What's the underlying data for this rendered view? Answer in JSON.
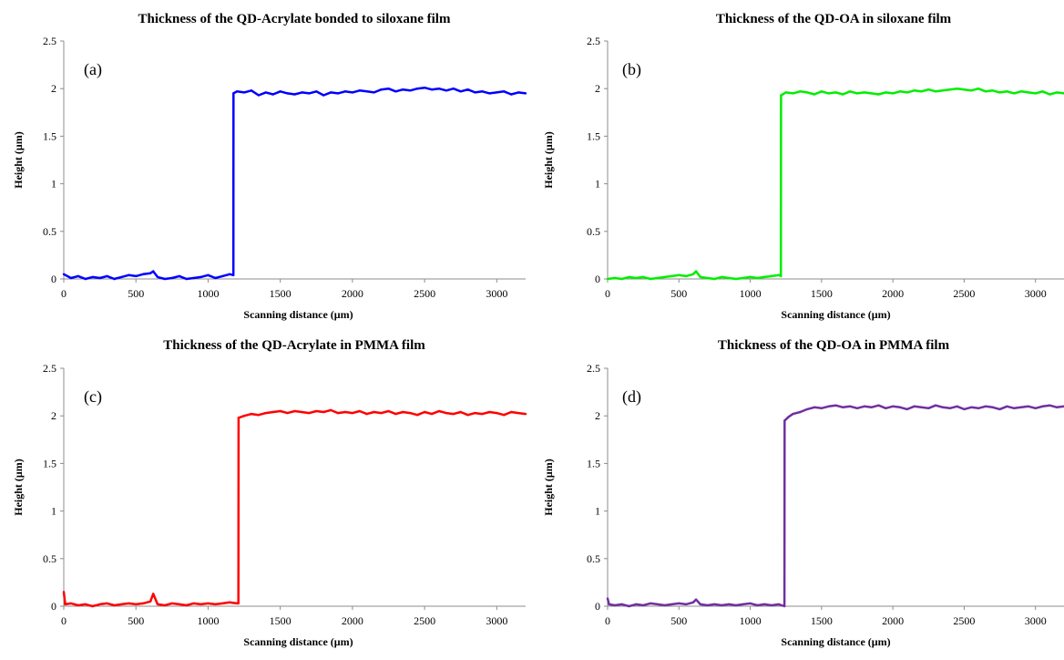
{
  "panels": [
    {
      "panel_label": "(a)",
      "chart_data": {
        "type": "line",
        "title": "Thickness of the QD-Acrylate bonded to siloxane film",
        "xlabel": "Scanning distance (μm)",
        "ylabel": "Height (μm)",
        "xlim": [
          0,
          3200
        ],
        "ylim": [
          0,
          2.5
        ],
        "xticks": [
          0,
          500,
          1000,
          1500,
          2000,
          2500,
          3000
        ],
        "yticks": [
          0,
          0.5,
          1,
          1.5,
          2,
          2.5
        ],
        "ytick_labels": [
          "0",
          "0.5",
          "1",
          "1.5",
          "2",
          "2.5"
        ],
        "color": "#0000ff",
        "series": [
          {
            "x": [
              0,
              50,
              100,
              150,
              200,
              250,
              300,
              350,
              400,
              450,
              500,
              550,
              600,
              620,
              650,
              700,
              750,
              800,
              850,
              900,
              950,
              1000,
              1050,
              1100,
              1150,
              1175,
              1176,
              1200,
              1250,
              1300,
              1350,
              1400,
              1450,
              1500,
              1550,
              1600,
              1650,
              1700,
              1750,
              1800,
              1850,
              1900,
              1950,
              2000,
              2050,
              2100,
              2150,
              2200,
              2250,
              2300,
              2350,
              2400,
              2450,
              2500,
              2550,
              2600,
              2650,
              2700,
              2750,
              2800,
              2850,
              2900,
              2950,
              3000,
              3050,
              3100,
              3150,
              3200
            ],
            "y": [
              0.05,
              0.01,
              0.03,
              0.0,
              0.02,
              0.01,
              0.03,
              0.0,
              0.02,
              0.04,
              0.03,
              0.05,
              0.06,
              0.08,
              0.02,
              0.0,
              0.01,
              0.03,
              0.0,
              0.01,
              0.02,
              0.04,
              0.01,
              0.03,
              0.05,
              0.04,
              1.95,
              1.97,
              1.96,
              1.98,
              1.93,
              1.96,
              1.94,
              1.97,
              1.95,
              1.94,
              1.96,
              1.95,
              1.97,
              1.93,
              1.96,
              1.95,
              1.97,
              1.96,
              1.98,
              1.97,
              1.96,
              1.99,
              2.0,
              1.97,
              1.99,
              1.98,
              2.0,
              2.01,
              1.99,
              2.0,
              1.98,
              2.0,
              1.97,
              1.99,
              1.96,
              1.97,
              1.95,
              1.96,
              1.97,
              1.94,
              1.96,
              1.95
            ]
          }
        ]
      }
    },
    {
      "panel_label": "(b)",
      "chart_data": {
        "type": "line",
        "title": "Thickness of the QD-OA in siloxane film",
        "xlabel": "Scanning distance (μm)",
        "ylabel": "Height (μm)",
        "xlim": [
          0,
          3200
        ],
        "ylim": [
          0,
          2.5
        ],
        "xticks": [
          0,
          500,
          1000,
          1500,
          2000,
          2500,
          3000
        ],
        "yticks": [
          0,
          0.5,
          1,
          1.5,
          2,
          2.5
        ],
        "ytick_labels": [
          "0",
          "0.5",
          "1",
          "1.5",
          "2",
          "2.5"
        ],
        "color": "#00ee00",
        "series": [
          {
            "x": [
              0,
              50,
              100,
              150,
              200,
              250,
              300,
              350,
              400,
              450,
              500,
              550,
              600,
              620,
              650,
              700,
              750,
              800,
              850,
              900,
              950,
              1000,
              1050,
              1100,
              1150,
              1200,
              1215,
              1216,
              1250,
              1300,
              1350,
              1400,
              1450,
              1500,
              1550,
              1600,
              1650,
              1700,
              1750,
              1800,
              1850,
              1900,
              1950,
              2000,
              2050,
              2100,
              2150,
              2200,
              2250,
              2300,
              2350,
              2400,
              2450,
              2500,
              2550,
              2600,
              2650,
              2700,
              2750,
              2800,
              2850,
              2900,
              2950,
              3000,
              3050,
              3100,
              3150,
              3200
            ],
            "y": [
              0.0,
              0.01,
              0.0,
              0.02,
              0.01,
              0.02,
              0.0,
              0.01,
              0.02,
              0.03,
              0.04,
              0.03,
              0.05,
              0.08,
              0.02,
              0.01,
              0.0,
              0.02,
              0.01,
              0.0,
              0.01,
              0.02,
              0.01,
              0.02,
              0.03,
              0.04,
              0.03,
              1.93,
              1.96,
              1.95,
              1.97,
              1.96,
              1.94,
              1.97,
              1.95,
              1.96,
              1.94,
              1.97,
              1.95,
              1.96,
              1.95,
              1.94,
              1.96,
              1.95,
              1.97,
              1.96,
              1.98,
              1.97,
              1.99,
              1.97,
              1.98,
              1.99,
              2.0,
              1.99,
              1.98,
              2.0,
              1.97,
              1.98,
              1.96,
              1.97,
              1.95,
              1.97,
              1.96,
              1.95,
              1.97,
              1.94,
              1.96,
              1.95
            ]
          }
        ]
      }
    },
    {
      "panel_label": "(c)",
      "chart_data": {
        "type": "line",
        "title": "Thickness of the QD-Acrylate  in PMMA film",
        "xlabel": "Scanning distance (μm)",
        "ylabel": "Height (μm)",
        "xlim": [
          0,
          3200
        ],
        "ylim": [
          0,
          2.5
        ],
        "xticks": [
          0,
          500,
          1000,
          1500,
          2000,
          2500,
          3000
        ],
        "yticks": [
          0,
          0.5,
          1,
          1.5,
          2,
          2.5
        ],
        "ytick_labels": [
          "0",
          "0.5",
          "1",
          "1.5",
          "2",
          "2.5"
        ],
        "color": "#ff0000",
        "series": [
          {
            "x": [
              0,
              10,
              50,
              100,
              150,
              200,
              250,
              300,
              350,
              400,
              450,
              500,
              550,
              600,
              620,
              650,
              700,
              750,
              800,
              850,
              900,
              950,
              1000,
              1050,
              1100,
              1150,
              1200,
              1210,
              1211,
              1250,
              1300,
              1350,
              1400,
              1450,
              1500,
              1550,
              1600,
              1650,
              1700,
              1750,
              1800,
              1850,
              1900,
              1950,
              2000,
              2050,
              2100,
              2150,
              2200,
              2250,
              2300,
              2350,
              2400,
              2450,
              2500,
              2550,
              2600,
              2650,
              2700,
              2750,
              2800,
              2850,
              2900,
              2950,
              3000,
              3050,
              3100,
              3150,
              3200
            ],
            "y": [
              0.15,
              0.02,
              0.03,
              0.01,
              0.02,
              0.0,
              0.02,
              0.03,
              0.01,
              0.02,
              0.03,
              0.02,
              0.03,
              0.05,
              0.13,
              0.02,
              0.01,
              0.03,
              0.02,
              0.01,
              0.03,
              0.02,
              0.03,
              0.02,
              0.03,
              0.04,
              0.03,
              0.03,
              1.98,
              2.0,
              2.02,
              2.01,
              2.03,
              2.04,
              2.05,
              2.03,
              2.05,
              2.04,
              2.03,
              2.05,
              2.04,
              2.06,
              2.03,
              2.04,
              2.03,
              2.05,
              2.02,
              2.04,
              2.03,
              2.05,
              2.02,
              2.04,
              2.03,
              2.01,
              2.04,
              2.02,
              2.05,
              2.03,
              2.02,
              2.04,
              2.01,
              2.03,
              2.02,
              2.04,
              2.03,
              2.01,
              2.04,
              2.03,
              2.02
            ]
          }
        ]
      }
    },
    {
      "panel_label": "(d)",
      "chart_data": {
        "type": "line",
        "title": "Thickness of the QD-OA in PMMA film",
        "xlabel": "Scanning distance (μm)",
        "ylabel": "Height (μm)",
        "xlim": [
          0,
          3200
        ],
        "ylim": [
          0,
          2.5
        ],
        "xticks": [
          0,
          500,
          1000,
          1500,
          2000,
          2500,
          3000
        ],
        "yticks": [
          0,
          0.5,
          1,
          1.5,
          2,
          2.5
        ],
        "ytick_labels": [
          "0",
          "0.5",
          "1",
          "1.5",
          "2",
          "2.5"
        ],
        "color": "#7030a0",
        "series": [
          {
            "x": [
              0,
              10,
              50,
              100,
              150,
              200,
              250,
              300,
              350,
              400,
              450,
              500,
              550,
              600,
              620,
              650,
              700,
              750,
              800,
              850,
              900,
              950,
              1000,
              1050,
              1100,
              1150,
              1200,
              1240,
              1241,
              1270,
              1300,
              1350,
              1400,
              1450,
              1500,
              1550,
              1600,
              1650,
              1700,
              1750,
              1800,
              1850,
              1900,
              1950,
              2000,
              2050,
              2100,
              2150,
              2200,
              2250,
              2300,
              2350,
              2400,
              2450,
              2500,
              2550,
              2600,
              2650,
              2700,
              2750,
              2800,
              2850,
              2900,
              2950,
              3000,
              3050,
              3100,
              3150,
              3200
            ],
            "y": [
              0.08,
              0.02,
              0.01,
              0.02,
              0.0,
              0.02,
              0.01,
              0.03,
              0.02,
              0.01,
              0.02,
              0.03,
              0.02,
              0.04,
              0.07,
              0.02,
              0.01,
              0.02,
              0.01,
              0.02,
              0.01,
              0.02,
              0.03,
              0.01,
              0.02,
              0.01,
              0.02,
              0.0,
              1.95,
              1.99,
              2.02,
              2.04,
              2.07,
              2.09,
              2.08,
              2.1,
              2.11,
              2.09,
              2.1,
              2.08,
              2.1,
              2.09,
              2.11,
              2.08,
              2.1,
              2.09,
              2.07,
              2.1,
              2.09,
              2.08,
              2.11,
              2.09,
              2.08,
              2.1,
              2.07,
              2.09,
              2.08,
              2.1,
              2.09,
              2.07,
              2.1,
              2.08,
              2.09,
              2.1,
              2.08,
              2.1,
              2.11,
              2.09,
              2.1
            ]
          }
        ]
      }
    }
  ]
}
